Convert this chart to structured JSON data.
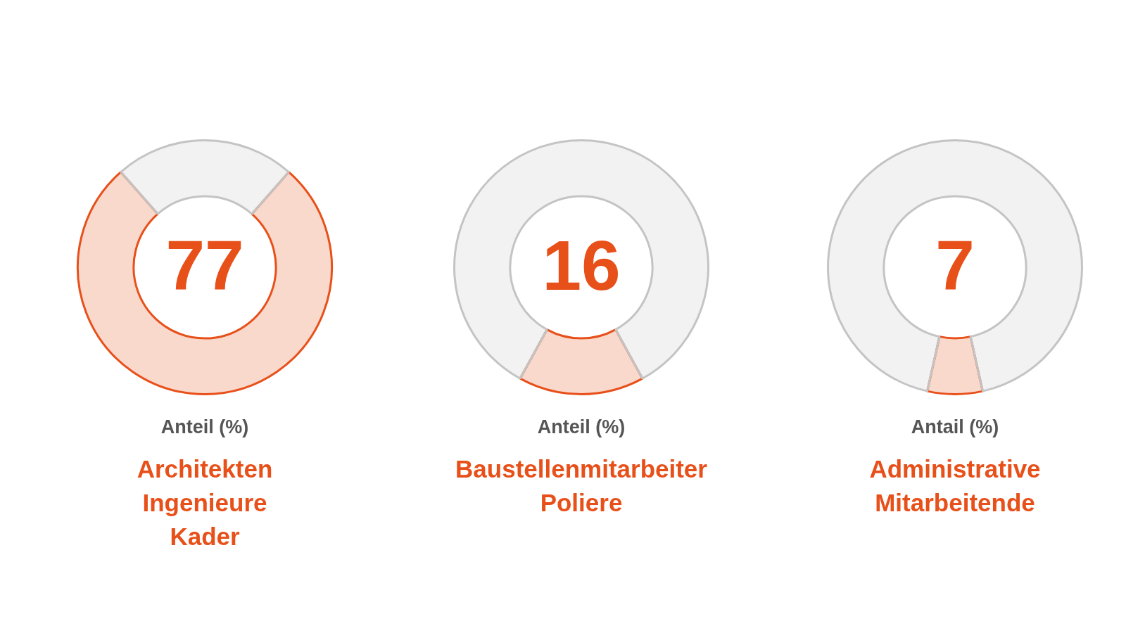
{
  "chart_data": [
    {
      "type": "donut",
      "title": "Architekten\nIngenieure\nKader",
      "subtitle": "Anteil (%)",
      "categories": [
        null,
        null
      ],
      "values": [
        77,
        23
      ],
      "colors": [
        "#e8501a",
        "#c4c4c4"
      ],
      "annotations": [
        "77"
      ],
      "legend": false
    },
    {
      "type": "donut",
      "title": "Baustellenmitarbeiter\nPoliere",
      "subtitle": "Anteil (%)",
      "categories": [
        null,
        null
      ],
      "values": [
        16,
        84
      ],
      "colors": [
        "#e8501a",
        "#c4c4c4"
      ],
      "annotations": [
        "16"
      ],
      "legend": false
    },
    {
      "type": "donut",
      "title": "Administrative\nMitarbeitende",
      "subtitle": "Antail (%)",
      "categories": [
        null,
        null
      ],
      "values": [
        7,
        93
      ],
      "colors": [
        "#e8501a",
        "#c4c4c4"
      ],
      "annotations": [
        "7"
      ],
      "legend": false
    }
  ]
}
